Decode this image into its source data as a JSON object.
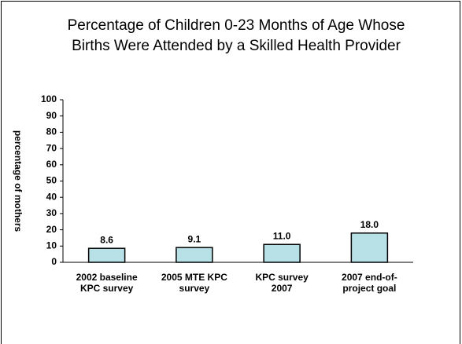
{
  "chart_data": {
    "type": "bar",
    "title": "Percentage of Children 0-23 Months of Age Whose Births Were Attended by a Skilled Health Provider",
    "y_label": "percentage of mothers",
    "categories": [
      "2002 baseline KPC survey",
      "2005 MTE KPC survey",
      "KPC survey 2007",
      "2007 end-of-project goal"
    ],
    "values": [
      8.6,
      9.1,
      11.0,
      18.0
    ],
    "value_labels": [
      "8.6",
      "9.1",
      "11.0",
      "18.0"
    ],
    "color": "#b7e1e6",
    "ylim": [
      0,
      100
    ],
    "yticks": [
      0,
      10,
      20,
      30,
      40,
      50,
      60,
      70,
      80,
      90,
      100
    ],
    "grid": false
  }
}
